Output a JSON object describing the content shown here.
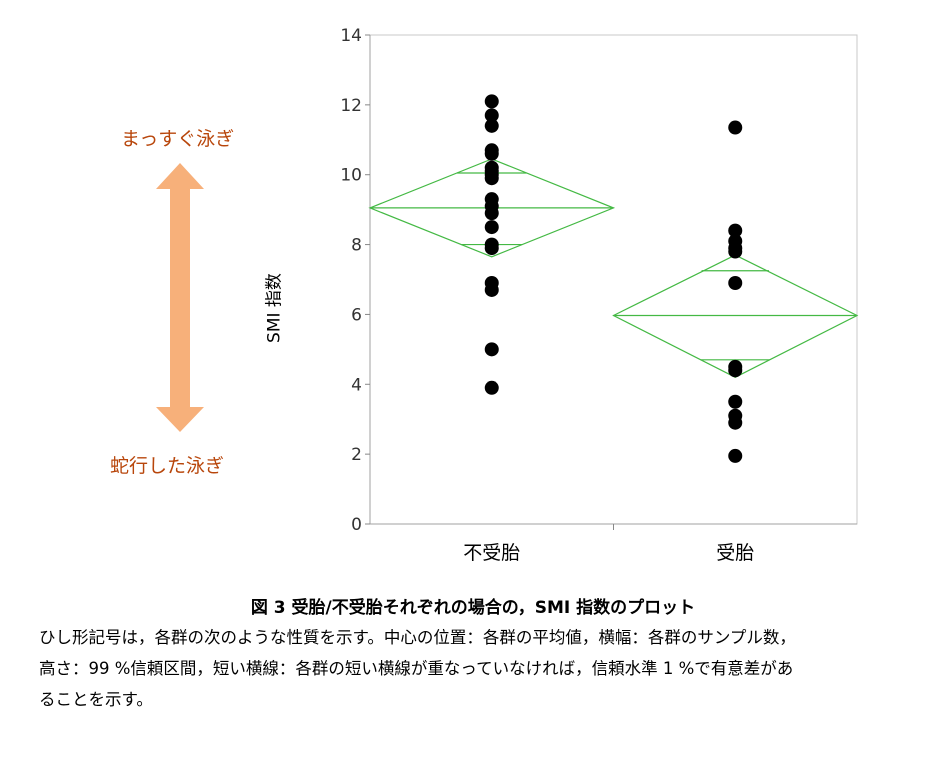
{
  "chart_data": {
    "type": "scatter",
    "subtype": "means-diamonds-dot-plot",
    "ylabel": "SMI 指数",
    "xlabel": "",
    "ylim": [
      0,
      14
    ],
    "yticks": [
      0,
      2,
      4,
      6,
      8,
      10,
      12,
      14
    ],
    "categories": [
      "不受胎",
      "受胎"
    ],
    "series": [
      {
        "category": "不受胎",
        "values": [
          12.1,
          11.7,
          11.4,
          10.7,
          10.6,
          10.2,
          10.1,
          10.0,
          9.9,
          9.3,
          9.1,
          8.9,
          8.5,
          8.0,
          7.9,
          6.9,
          6.7,
          5.0,
          3.9
        ],
        "mean": 9.05,
        "ci99": [
          7.65,
          10.45
        ],
        "overlap_marks": [
          8.0,
          10.05
        ]
      },
      {
        "category": "受胎",
        "values": [
          11.35,
          8.4,
          8.1,
          7.9,
          7.8,
          6.9,
          4.5,
          4.4,
          3.5,
          3.1,
          2.9,
          1.95
        ],
        "mean": 5.97,
        "ci99": [
          4.2,
          7.7
        ],
        "overlap_marks": [
          4.7,
          7.25
        ]
      }
    ],
    "colors": {
      "diamond": "#44b944",
      "points": "#000000",
      "arrow": "#f7b07a",
      "side_label": "#b8460b"
    }
  },
  "side_labels": {
    "top": "まっすぐ泳ぎ",
    "bottom": "蛇行した泳ぎ"
  },
  "caption": {
    "title": "図 3  受胎/不受胎それぞれの場合の，SMI 指数のプロット",
    "lines": [
      "ひし形記号は，各群の次のような性質を示す。中心の位置：各群の平均値，横幅：各群のサンプル数，",
      "高さ：99 %信頼区間，短い横線：各群の短い横線が重なっていなければ，信頼水準 1 %で有意差があ",
      "ることを示す。"
    ]
  }
}
